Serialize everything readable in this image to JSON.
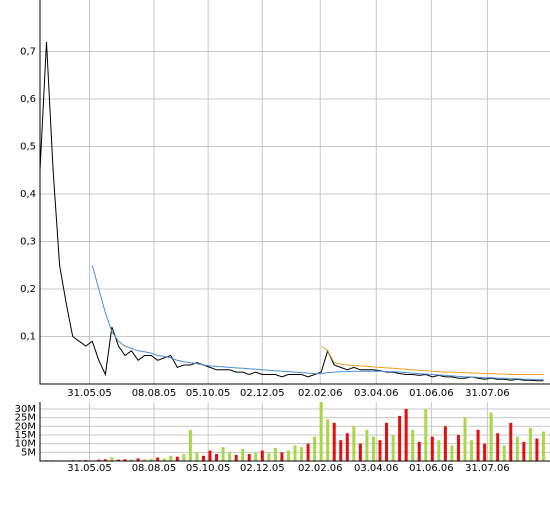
{
  "chart_data": [
    {
      "type": "line",
      "x": [
        "2005-04-08",
        "2005-04-15",
        "2005-04-22",
        "2005-04-29",
        "2005-05-06",
        "2005-05-13",
        "2005-05-20",
        "2005-05-27",
        "2005-06-03",
        "2005-06-10",
        "2005-06-17",
        "2005-06-24",
        "2005-07-01",
        "2005-07-08",
        "2005-07-15",
        "2005-07-22",
        "2005-07-29",
        "2005-08-05",
        "2005-08-12",
        "2005-08-19",
        "2005-08-26",
        "2005-09-02",
        "2005-09-09",
        "2005-09-16",
        "2005-09-23",
        "2005-09-30",
        "2005-10-07",
        "2005-10-14",
        "2005-10-21",
        "2005-10-28",
        "2005-11-04",
        "2005-11-11",
        "2005-11-18",
        "2005-11-25",
        "2005-12-02",
        "2005-12-09",
        "2005-12-16",
        "2005-12-23",
        "2005-12-30",
        "2006-01-06",
        "2006-01-13",
        "2006-01-20",
        "2006-01-27",
        "2006-02-03",
        "2006-02-10",
        "2006-02-17",
        "2006-02-24",
        "2006-03-03",
        "2006-03-10",
        "2006-03-17",
        "2006-03-24",
        "2006-03-31",
        "2006-04-07",
        "2006-04-14",
        "2006-04-21",
        "2006-04-28",
        "2006-05-05",
        "2006-05-12",
        "2006-05-19",
        "2006-05-26",
        "2006-06-02",
        "2006-06-09",
        "2006-06-16",
        "2006-06-23",
        "2006-06-30",
        "2006-07-07",
        "2006-07-14",
        "2006-07-21",
        "2006-07-28",
        "2006-08-04",
        "2006-08-11",
        "2006-08-18",
        "2006-08-25",
        "2006-09-01",
        "2006-09-08",
        "2006-09-15",
        "2006-09-22",
        "2006-09-29"
      ],
      "series": [
        {
          "color": "#000000",
          "values": [
            0.45,
            0.72,
            0.45,
            0.25,
            0.17,
            0.1,
            0.09,
            0.08,
            0.09,
            0.05,
            0.02,
            0.12,
            0.08,
            0.06,
            0.07,
            0.05,
            0.06,
            0.06,
            0.05,
            0.055,
            0.06,
            0.035,
            0.04,
            0.04,
            0.045,
            0.04,
            0.035,
            0.03,
            0.03,
            0.03,
            0.025,
            0.025,
            0.02,
            0.025,
            0.02,
            0.02,
            0.02,
            0.015,
            0.02,
            0.02,
            0.02,
            0.015,
            0.02,
            0.025,
            0.07,
            0.04,
            0.035,
            0.03,
            0.035,
            0.03,
            0.03,
            0.03,
            0.028,
            0.025,
            0.025,
            0.022,
            0.02,
            0.02,
            0.018,
            0.02,
            0.015,
            0.018,
            0.015,
            0.015,
            0.012,
            0.012,
            0.015,
            0.012,
            0.01,
            0.012,
            0.01,
            0.01,
            0.008,
            0.01,
            0.008,
            0.008,
            0.007,
            0.007
          ]
        },
        {
          "color": "#4a90d9",
          "values": [
            null,
            null,
            null,
            null,
            null,
            null,
            null,
            null,
            0.25,
            0.2,
            0.15,
            0.11,
            0.09,
            0.08,
            0.075,
            0.07,
            0.068,
            0.065,
            0.06,
            0.058,
            0.055,
            0.05,
            0.047,
            0.045,
            0.043,
            0.04,
            0.038,
            0.037,
            0.036,
            0.035,
            0.034,
            0.033,
            0.032,
            0.031,
            0.03,
            0.029,
            0.028,
            0.027,
            0.026,
            0.025,
            0.024,
            0.023,
            0.022,
            0.022,
            0.024,
            0.025,
            0.026,
            0.026,
            0.027,
            0.027,
            0.027,
            0.027,
            0.027,
            0.026,
            0.026,
            0.025,
            0.024,
            0.023,
            0.022,
            0.021,
            0.02,
            0.019,
            0.018,
            0.017,
            0.016,
            0.015,
            0.015,
            0.014,
            0.013,
            0.013,
            0.012,
            0.012,
            0.011,
            0.011,
            0.01,
            0.01,
            0.009,
            0.009
          ]
        },
        {
          "color": "#f0a020",
          "values": [
            null,
            null,
            null,
            null,
            null,
            null,
            null,
            null,
            null,
            null,
            null,
            null,
            null,
            null,
            null,
            null,
            null,
            null,
            null,
            null,
            null,
            null,
            null,
            null,
            null,
            null,
            null,
            null,
            null,
            null,
            null,
            null,
            null,
            null,
            null,
            null,
            null,
            null,
            null,
            null,
            null,
            null,
            null,
            0.08,
            0.07,
            0.045,
            0.042,
            0.04,
            0.039,
            0.038,
            0.037,
            0.036,
            0.035,
            0.034,
            0.033,
            0.032,
            0.031,
            0.03,
            0.029,
            0.028,
            0.027,
            0.026,
            0.025,
            0.025,
            0.024,
            0.024,
            0.023,
            0.023,
            0.022,
            0.022,
            0.021,
            0.021,
            0.02,
            0.02,
            0.02,
            0.02,
            0.02,
            0.02
          ]
        }
      ],
      "xlim": [
        "2005-04-08",
        "2006-10-06"
      ],
      "xticks": [
        {
          "value": "2005-05-31",
          "label": "31.05.05"
        },
        {
          "value": "2005-08-08",
          "label": "08.08.05"
        },
        {
          "value": "2005-10-05",
          "label": "05.10.05"
        },
        {
          "value": "2005-12-02",
          "label": "02.12.05"
        },
        {
          "value": "2006-02-02",
          "label": "02.02.06"
        },
        {
          "value": "2006-04-03",
          "label": "03.04.06"
        },
        {
          "value": "2006-06-01",
          "label": "01.06.06"
        },
        {
          "value": "2006-07-31",
          "label": "31.07.06"
        }
      ],
      "ylim": [
        0,
        0.8
      ],
      "yticks": [
        {
          "value": 0.1,
          "label": "0,1"
        },
        {
          "value": 0.2,
          "label": "0,2"
        },
        {
          "value": 0.3,
          "label": "0,3"
        },
        {
          "value": 0.4,
          "label": "0,4"
        },
        {
          "value": 0.5,
          "label": "0,5"
        },
        {
          "value": 0.6,
          "label": "0,6"
        },
        {
          "value": 0.7,
          "label": "0,7"
        }
      ],
      "grid": true
    },
    {
      "type": "bar",
      "values": [
        300000,
        500000,
        400000,
        300000,
        200000,
        500000,
        400000,
        600000,
        300000,
        800000,
        1000000,
        2200000,
        800000,
        1000000,
        900000,
        1500000,
        1000000,
        1200000,
        2000000,
        1500000,
        3000000,
        2500000,
        4000000,
        18000000,
        5000000,
        3000000,
        6000000,
        4000000,
        8000000,
        5000000,
        3500000,
        7000000,
        4000000,
        5000000,
        6000000,
        4500000,
        7500000,
        5000000,
        6000000,
        9000000,
        8000000,
        10000000,
        14000000,
        35000000,
        24000000,
        22000000,
        12000000,
        16000000,
        20000000,
        10000000,
        18000000,
        14000000,
        12000000,
        22000000,
        15000000,
        26000000,
        30000000,
        18000000,
        11000000,
        30000000,
        14000000,
        12000000,
        20000000,
        9000000,
        15000000,
        25000000,
        12000000,
        18000000,
        10000000,
        28000000,
        16000000,
        9000000,
        22000000,
        14000000,
        11000000,
        19000000,
        13000000,
        17000000
      ],
      "up_color": "#a8d848",
      "down_color": "#e01010",
      "ylim": [
        0,
        34000000
      ],
      "yticks": [
        {
          "value": 5000000,
          "label": "5M"
        },
        {
          "value": 10000000,
          "label": "10M"
        },
        {
          "value": 15000000,
          "label": "15M"
        },
        {
          "value": 20000000,
          "label": "20M"
        },
        {
          "value": 25000000,
          "label": "25M"
        },
        {
          "value": 30000000,
          "label": "30M"
        }
      ],
      "grid": true
    }
  ]
}
